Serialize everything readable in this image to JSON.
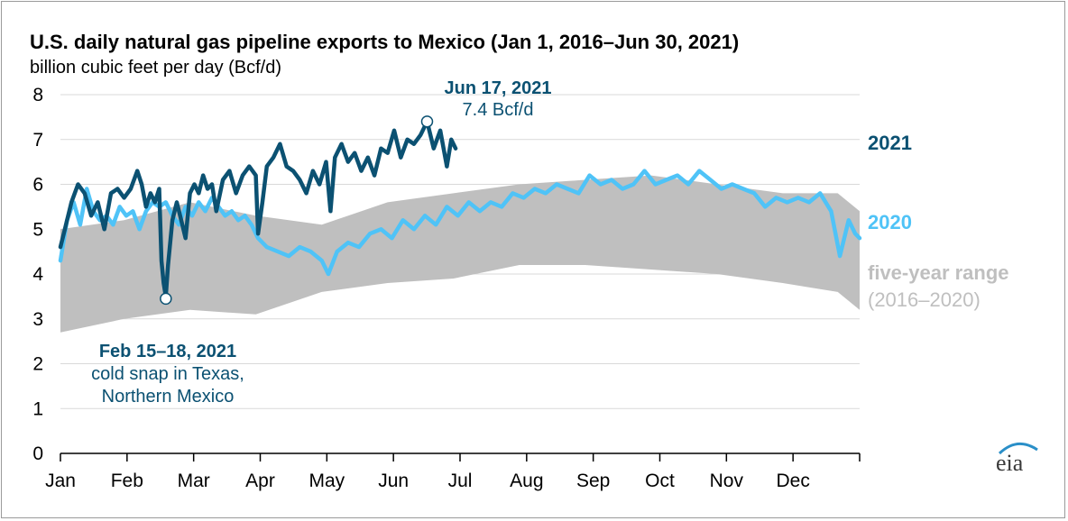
{
  "chart_data": {
    "type": "line",
    "title": "U.S. daily natural gas pipeline exports to Mexico (Jan 1, 2016–Jun 30, 2021)",
    "ylabel": "billion cubic feet per day (Bcf/d)",
    "ylim": [
      0,
      8
    ],
    "yticks": [
      "0",
      "1",
      "2",
      "3",
      "4",
      "5",
      "6",
      "7",
      "8"
    ],
    "x_ticks": [
      "Jan",
      "Feb",
      "Mar",
      "Apr",
      "May",
      "Jun",
      "Jul",
      "Aug",
      "Sep",
      "Oct",
      "Nov",
      "Dec"
    ],
    "grid": "horizontal",
    "series": [
      {
        "name": "2021",
        "color": "#0b5172",
        "points": [
          [
            1,
            4.6
          ],
          [
            3,
            5.0
          ],
          [
            6,
            5.6
          ],
          [
            9,
            6.0
          ],
          [
            12,
            5.8
          ],
          [
            15,
            5.3
          ],
          [
            18,
            5.6
          ],
          [
            21,
            5.0
          ],
          [
            24,
            5.8
          ],
          [
            27,
            5.9
          ],
          [
            30,
            5.7
          ],
          [
            33,
            5.9
          ],
          [
            36,
            6.3
          ],
          [
            38,
            6.0
          ],
          [
            40,
            5.5
          ],
          [
            42,
            5.8
          ],
          [
            44,
            5.6
          ],
          [
            46,
            5.9
          ],
          [
            47,
            4.3
          ],
          [
            48,
            3.8
          ],
          [
            49,
            3.5
          ],
          [
            50,
            4.2
          ],
          [
            52,
            5.2
          ],
          [
            54,
            5.6
          ],
          [
            56,
            5.2
          ],
          [
            58,
            4.8
          ],
          [
            60,
            5.8
          ],
          [
            62,
            6.0
          ],
          [
            64,
            5.8
          ],
          [
            66,
            6.2
          ],
          [
            68,
            5.9
          ],
          [
            70,
            6.0
          ],
          [
            72,
            5.4
          ],
          [
            75,
            6.1
          ],
          [
            78,
            6.3
          ],
          [
            81,
            5.8
          ],
          [
            84,
            6.2
          ],
          [
            87,
            6.4
          ],
          [
            90,
            6.2
          ],
          [
            91,
            4.9
          ],
          [
            93,
            5.6
          ],
          [
            95,
            6.4
          ],
          [
            98,
            6.6
          ],
          [
            101,
            6.9
          ],
          [
            104,
            6.4
          ],
          [
            107,
            6.3
          ],
          [
            110,
            6.1
          ],
          [
            113,
            5.8
          ],
          [
            116,
            6.3
          ],
          [
            119,
            6.0
          ],
          [
            122,
            6.5
          ],
          [
            124,
            5.4
          ],
          [
            126,
            6.6
          ],
          [
            129,
            6.9
          ],
          [
            132,
            6.5
          ],
          [
            135,
            6.7
          ],
          [
            138,
            6.3
          ],
          [
            141,
            6.6
          ],
          [
            144,
            6.2
          ],
          [
            147,
            6.8
          ],
          [
            150,
            6.7
          ],
          [
            153,
            7.2
          ],
          [
            156,
            6.6
          ],
          [
            159,
            7.0
          ],
          [
            162,
            6.9
          ],
          [
            165,
            7.1
          ],
          [
            168,
            7.4
          ],
          [
            171,
            6.8
          ],
          [
            174,
            7.2
          ],
          [
            177,
            6.4
          ],
          [
            179,
            7.0
          ],
          [
            181,
            6.8
          ]
        ]
      },
      {
        "name": "2020",
        "color": "#4fc3f7",
        "points": [
          [
            1,
            4.3
          ],
          [
            4,
            5.2
          ],
          [
            7,
            5.6
          ],
          [
            10,
            5.1
          ],
          [
            13,
            5.9
          ],
          [
            16,
            5.4
          ],
          [
            19,
            5.2
          ],
          [
            22,
            5.3
          ],
          [
            25,
            5.1
          ],
          [
            28,
            5.5
          ],
          [
            31,
            5.3
          ],
          [
            34,
            5.4
          ],
          [
            37,
            5.0
          ],
          [
            40,
            5.4
          ],
          [
            43,
            5.6
          ],
          [
            46,
            5.5
          ],
          [
            49,
            5.6
          ],
          [
            52,
            5.3
          ],
          [
            55,
            5.1
          ],
          [
            58,
            5.5
          ],
          [
            61,
            5.3
          ],
          [
            64,
            5.6
          ],
          [
            67,
            5.4
          ],
          [
            70,
            5.7
          ],
          [
            73,
            5.5
          ],
          [
            76,
            5.3
          ],
          [
            79,
            5.4
          ],
          [
            82,
            5.2
          ],
          [
            85,
            5.3
          ],
          [
            88,
            5.1
          ],
          [
            91,
            4.8
          ],
          [
            95,
            4.6
          ],
          [
            100,
            4.5
          ],
          [
            105,
            4.4
          ],
          [
            110,
            4.6
          ],
          [
            115,
            4.5
          ],
          [
            120,
            4.3
          ],
          [
            123,
            4.0
          ],
          [
            127,
            4.5
          ],
          [
            132,
            4.7
          ],
          [
            137,
            4.6
          ],
          [
            142,
            4.9
          ],
          [
            147,
            5.0
          ],
          [
            152,
            4.8
          ],
          [
            157,
            5.2
          ],
          [
            162,
            5.0
          ],
          [
            167,
            5.3
          ],
          [
            172,
            5.1
          ],
          [
            177,
            5.5
          ],
          [
            182,
            5.3
          ],
          [
            187,
            5.6
          ],
          [
            192,
            5.4
          ],
          [
            197,
            5.6
          ],
          [
            202,
            5.5
          ],
          [
            207,
            5.8
          ],
          [
            212,
            5.7
          ],
          [
            217,
            5.9
          ],
          [
            222,
            5.8
          ],
          [
            227,
            6.0
          ],
          [
            232,
            5.9
          ],
          [
            237,
            5.8
          ],
          [
            242,
            6.2
          ],
          [
            247,
            6.0
          ],
          [
            252,
            6.1
          ],
          [
            257,
            5.9
          ],
          [
            262,
            6.0
          ],
          [
            267,
            6.3
          ],
          [
            272,
            6.0
          ],
          [
            277,
            6.1
          ],
          [
            282,
            6.2
          ],
          [
            287,
            6.0
          ],
          [
            292,
            6.3
          ],
          [
            297,
            6.1
          ],
          [
            302,
            5.9
          ],
          [
            307,
            6.0
          ],
          [
            312,
            5.9
          ],
          [
            317,
            5.8
          ],
          [
            322,
            5.5
          ],
          [
            327,
            5.7
          ],
          [
            332,
            5.6
          ],
          [
            337,
            5.7
          ],
          [
            342,
            5.6
          ],
          [
            347,
            5.8
          ],
          [
            352,
            5.4
          ],
          [
            356,
            4.4
          ],
          [
            360,
            5.2
          ],
          [
            363,
            4.9
          ],
          [
            365,
            4.8
          ]
        ]
      }
    ],
    "range_band": {
      "name": "five-year range",
      "period": "(2016–2020)",
      "color": "#bfbfbf",
      "upper": [
        [
          1,
          5.0
        ],
        [
          30,
          5.2
        ],
        [
          60,
          5.6
        ],
        [
          90,
          5.3
        ],
        [
          120,
          5.1
        ],
        [
          150,
          5.6
        ],
        [
          180,
          5.8
        ],
        [
          210,
          6.0
        ],
        [
          240,
          6.1
        ],
        [
          270,
          6.2
        ],
        [
          300,
          6.0
        ],
        [
          330,
          5.8
        ],
        [
          355,
          5.8
        ],
        [
          365,
          5.4
        ]
      ],
      "lower": [
        [
          1,
          2.7
        ],
        [
          30,
          3.0
        ],
        [
          60,
          3.2
        ],
        [
          90,
          3.1
        ],
        [
          120,
          3.6
        ],
        [
          150,
          3.8
        ],
        [
          180,
          3.9
        ],
        [
          210,
          4.2
        ],
        [
          240,
          4.2
        ],
        [
          270,
          4.1
        ],
        [
          300,
          4.0
        ],
        [
          330,
          3.8
        ],
        [
          355,
          3.6
        ],
        [
          365,
          3.2
        ]
      ]
    },
    "annotations": [
      {
        "date": "Jun 17, 2021",
        "text": "7.4 Bcf/d",
        "day": 168,
        "value": 7.4
      },
      {
        "date": "Feb 15–18, 2021",
        "text": "cold snap in Texas,",
        "text2": "Northern Mexico",
        "day": 49,
        "value": 3.45
      }
    ],
    "legend": "right"
  },
  "logo_text": "eia"
}
